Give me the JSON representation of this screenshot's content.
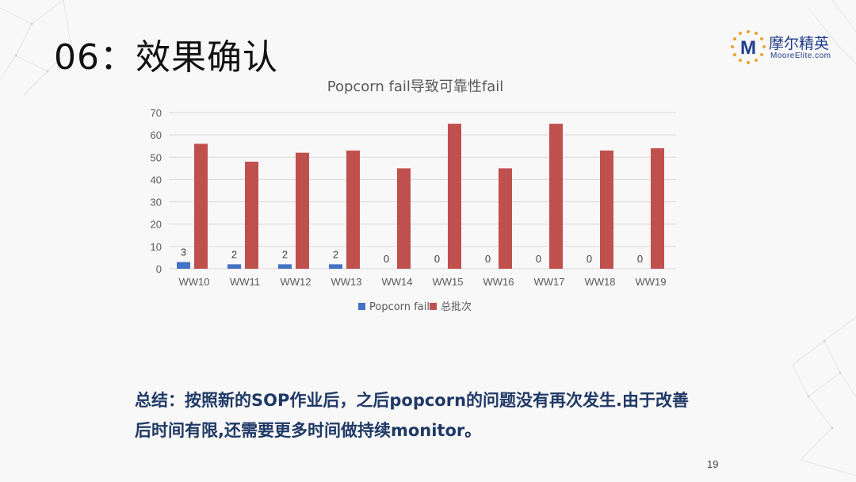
{
  "slide": {
    "title": "06：效果确认",
    "logo_cn": "摩尔精英",
    "logo_en": "MooreElite.com",
    "logo_mark": "M",
    "summary_line1": "总结：按照新的SOP作业后，之后popcorn的问题没有再次发生.由于改善",
    "summary_line2": "后时间有限,还需要更多时间做持续monitor。",
    "page_number": "19"
  },
  "chart_data": {
    "type": "bar",
    "title": "Popcorn fail导致可靠性fail",
    "categories": [
      "WW10",
      "WW11",
      "WW12",
      "WW13",
      "WW14",
      "WW15",
      "WW16",
      "WW17",
      "WW18",
      "WW19"
    ],
    "series": [
      {
        "name": "Popcorn fail",
        "values": [
          3,
          2,
          2,
          2,
          0,
          0,
          0,
          0,
          0,
          0
        ],
        "color": "#4472c4",
        "data_labels": true
      },
      {
        "name": "总批次",
        "values": [
          56,
          48,
          52,
          53,
          45,
          65,
          45,
          65,
          53,
          54
        ],
        "color": "#c0504d",
        "data_labels": false
      }
    ],
    "ylim": [
      0,
      70
    ],
    "yticks": [
      0,
      10,
      20,
      30,
      40,
      50,
      60,
      70
    ],
    "grid": true,
    "legend_position": "bottom",
    "xlabel": "",
    "ylabel": ""
  }
}
